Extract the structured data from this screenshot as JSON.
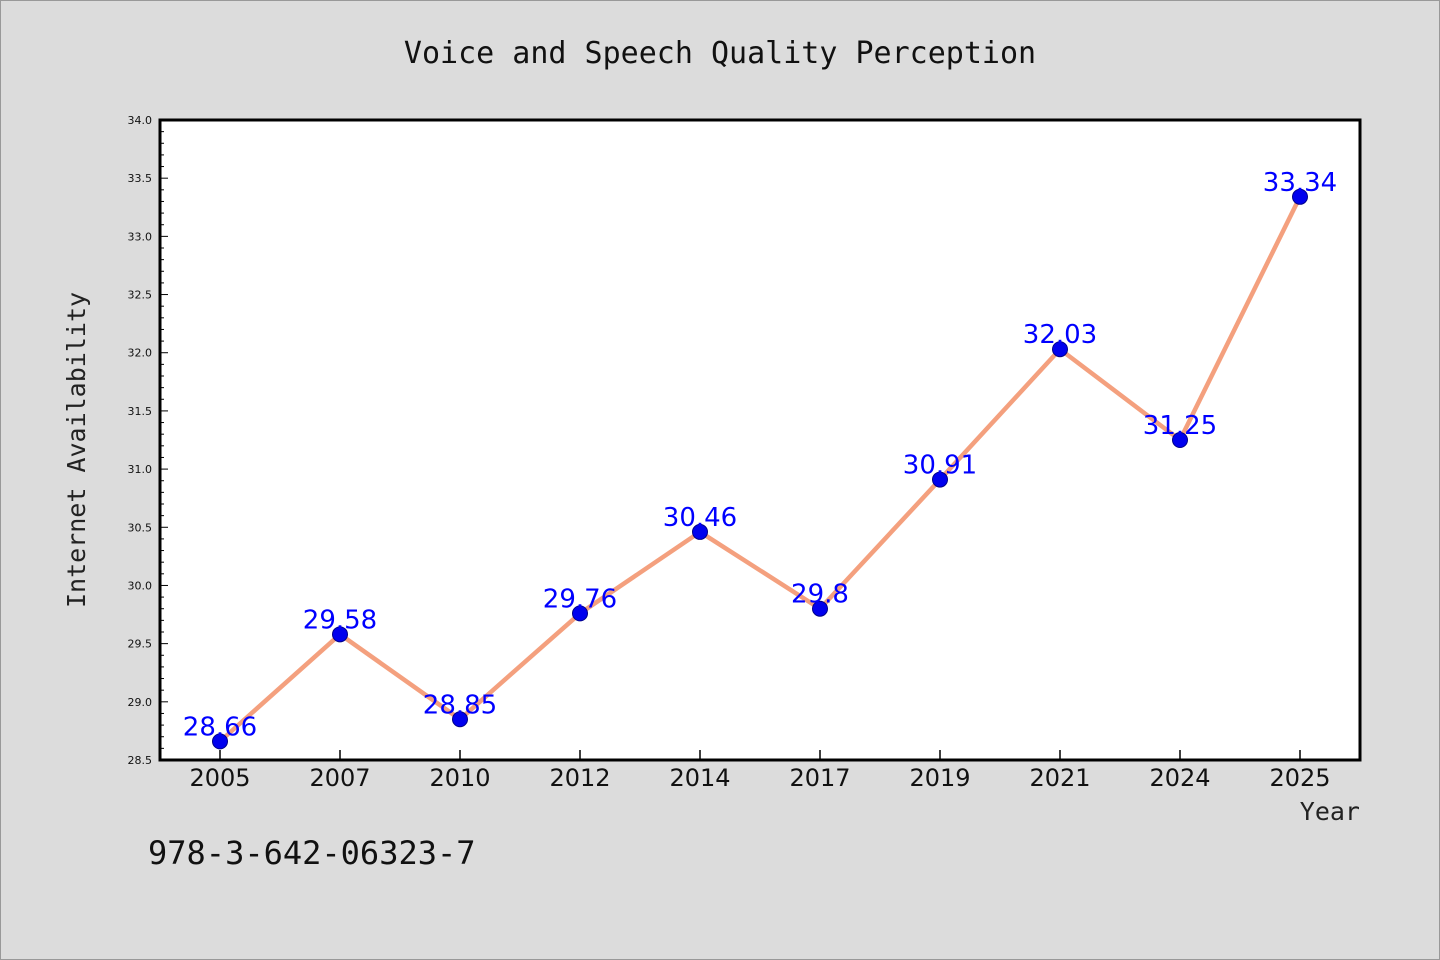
{
  "chart_data": {
    "type": "line",
    "title": "Voice and Speech Quality Perception",
    "xlabel": "Year",
    "ylabel": "Internet Availability",
    "categories": [
      "2005",
      "2007",
      "2010",
      "2012",
      "2014",
      "2017",
      "2019",
      "2021",
      "2024",
      "2025"
    ],
    "series": [
      {
        "values": [
          28.66,
          29.58,
          28.85,
          29.76,
          30.46,
          29.8,
          30.91,
          32.03,
          31.25,
          33.34
        ],
        "data_labels": [
          "28.66",
          "29.58",
          "28.85",
          "29.76",
          "30.46",
          "29.8",
          "30.91",
          "32.03",
          "31.25",
          "33.34"
        ]
      }
    ],
    "ylim": [
      28.5,
      34.0
    ],
    "yticks": [
      "28.5",
      "29.0",
      "29.5",
      "30.0",
      "30.5",
      "31.0",
      "31.5",
      "32.0",
      "32.5",
      "33.0",
      "33.5",
      "34.0"
    ],
    "grid": false,
    "line_color": "#f4a07e",
    "marker_color": "#0000ee",
    "label_color": "#0000ff"
  },
  "footer": {
    "isbn": "978-3-642-06323-7"
  }
}
